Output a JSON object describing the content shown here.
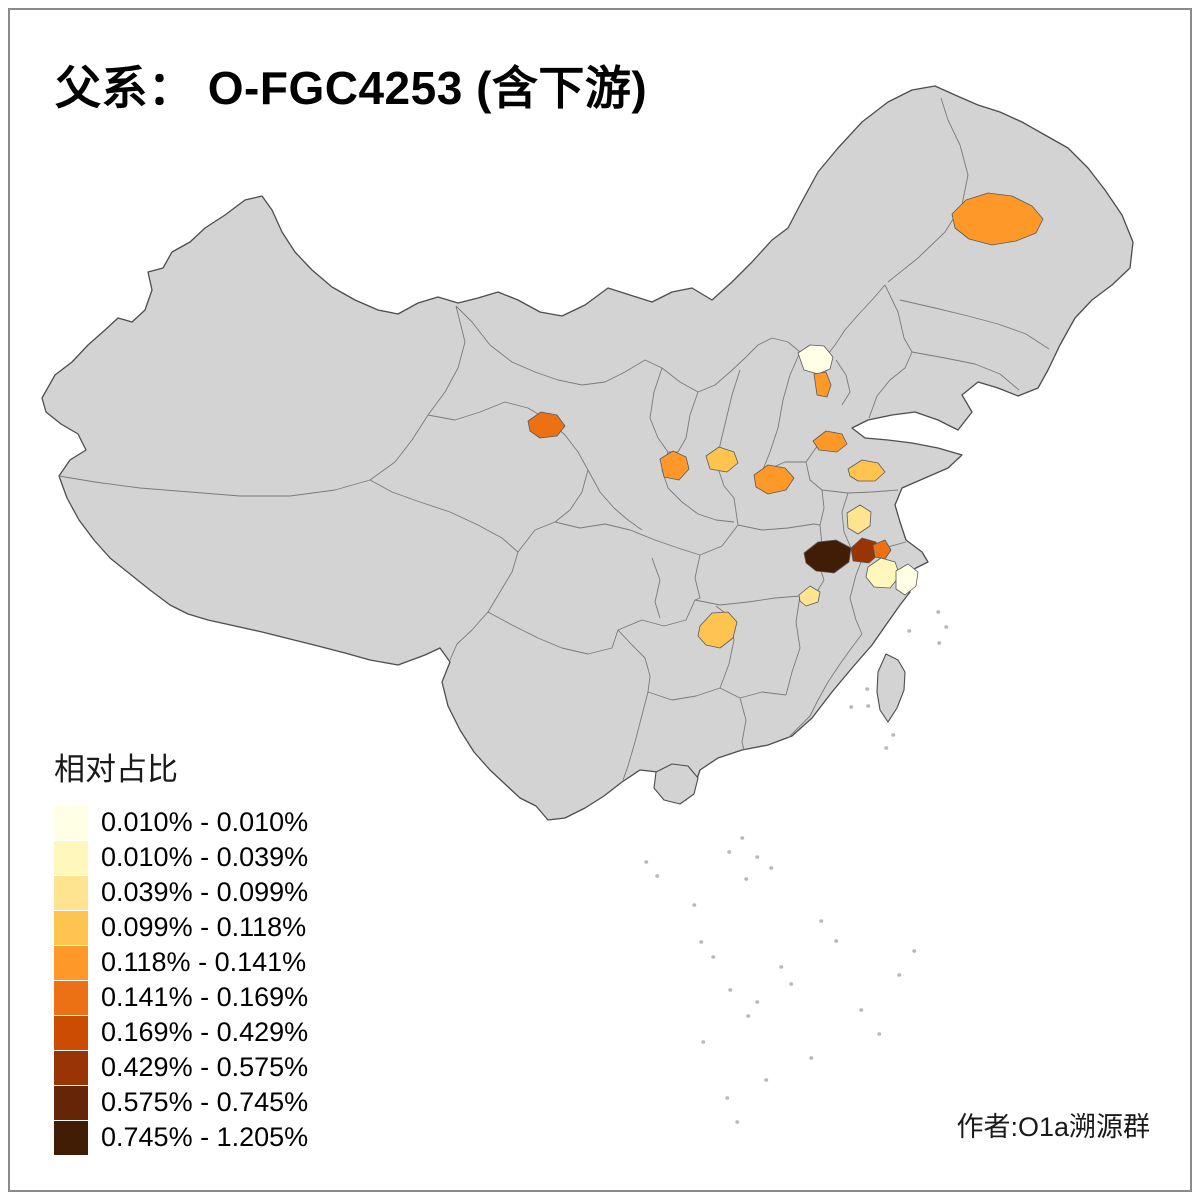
{
  "title": "父系： O-FGC4253 (含下游)",
  "credit": "作者:O1a溯源群",
  "legend": {
    "title": "相对占比",
    "items": [
      {
        "label": "0.010% - 0.010%",
        "color": "#FFFFE5"
      },
      {
        "label": "0.010% - 0.039%",
        "color": "#FFF7BC"
      },
      {
        "label": "0.039% - 0.099%",
        "color": "#FEE391"
      },
      {
        "label": "0.099% - 0.118%",
        "color": "#FEC44F"
      },
      {
        "label": "0.118% - 0.141%",
        "color": "#FE9929"
      },
      {
        "label": "0.141% - 0.169%",
        "color": "#EC7014"
      },
      {
        "label": "0.169% - 0.429%",
        "color": "#CC4C02"
      },
      {
        "label": "0.429% - 0.575%",
        "color": "#993404"
      },
      {
        "label": "0.575% - 0.745%",
        "color": "#662506"
      },
      {
        "label": "0.745% - 1.205%",
        "color": "#421D06"
      }
    ]
  },
  "map": {
    "land_color": "#D3D3D3",
    "outer_border_color": "#4D4D4D",
    "province_border_color": "#7A7A7A",
    "island_color": "#B8B8B8",
    "background": "#FFFFFF",
    "regions": [
      {
        "id": "heilongjiang-prefecture",
        "color": "#FE9929"
      },
      {
        "id": "beijing-north",
        "color": "#FFFFE5"
      },
      {
        "id": "beijing-south",
        "color": "#FE9929"
      },
      {
        "id": "qinghai-east",
        "color": "#EC7014"
      },
      {
        "id": "gansu-south",
        "color": "#FE9929"
      },
      {
        "id": "shaanxi-central",
        "color": "#FEC44F"
      },
      {
        "id": "henan-central",
        "color": "#FE9929"
      },
      {
        "id": "shandong-west",
        "color": "#FE9929"
      },
      {
        "id": "jiangsu-central",
        "color": "#FEC44F"
      },
      {
        "id": "anhui-central",
        "color": "#FEE391"
      },
      {
        "id": "hubei-east",
        "color": "#421D06"
      },
      {
        "id": "anhui-southwest",
        "color": "#993404"
      },
      {
        "id": "anhui-southeast",
        "color": "#EC7014"
      },
      {
        "id": "zhejiang-north",
        "color": "#FFF7BC"
      },
      {
        "id": "zhejiang-northeast",
        "color": "#FFFFE5"
      },
      {
        "id": "hunan-north",
        "color": "#FEE391"
      },
      {
        "id": "guizhou-east",
        "color": "#FEC44F"
      }
    ]
  }
}
